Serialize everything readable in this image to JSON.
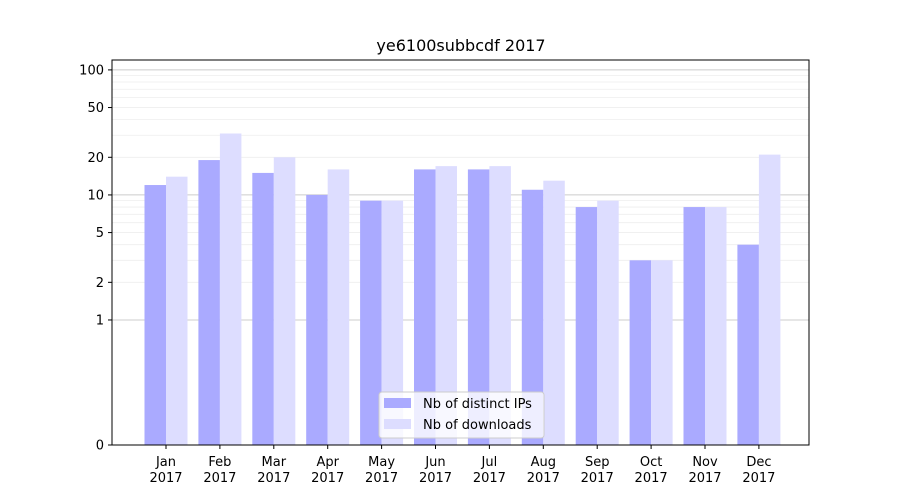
{
  "chart_data": {
    "type": "bar",
    "title": "ye6100subbcdf 2017",
    "xlabel": "",
    "ylabel": "",
    "yscale": "symlog",
    "ylim": [
      0,
      120
    ],
    "yticks": [
      0,
      1,
      2,
      5,
      10,
      20,
      50,
      100
    ],
    "ytick_labels": [
      "0",
      "1",
      "2",
      "5",
      "10",
      "20",
      "50",
      "100"
    ],
    "categories": [
      [
        "Jan",
        "2017"
      ],
      [
        "Feb",
        "2017"
      ],
      [
        "Mar",
        "2017"
      ],
      [
        "Apr",
        "2017"
      ],
      [
        "May",
        "2017"
      ],
      [
        "Jun",
        "2017"
      ],
      [
        "Jul",
        "2017"
      ],
      [
        "Aug",
        "2017"
      ],
      [
        "Sep",
        "2017"
      ],
      [
        "Oct",
        "2017"
      ],
      [
        "Nov",
        "2017"
      ],
      [
        "Dec",
        "2017"
      ]
    ],
    "series": [
      {
        "name": "Nb of distinct IPs",
        "color": "#aaaaff",
        "values": [
          12,
          19,
          15,
          10,
          9,
          16,
          16,
          11,
          8,
          3,
          8,
          4
        ]
      },
      {
        "name": "Nb of downloads",
        "color": "#ddddff",
        "values": [
          14,
          31,
          20,
          16,
          9,
          17,
          17,
          13,
          9,
          3,
          8,
          21
        ]
      }
    ],
    "grid": true,
    "legend_position": "bottom-center"
  }
}
